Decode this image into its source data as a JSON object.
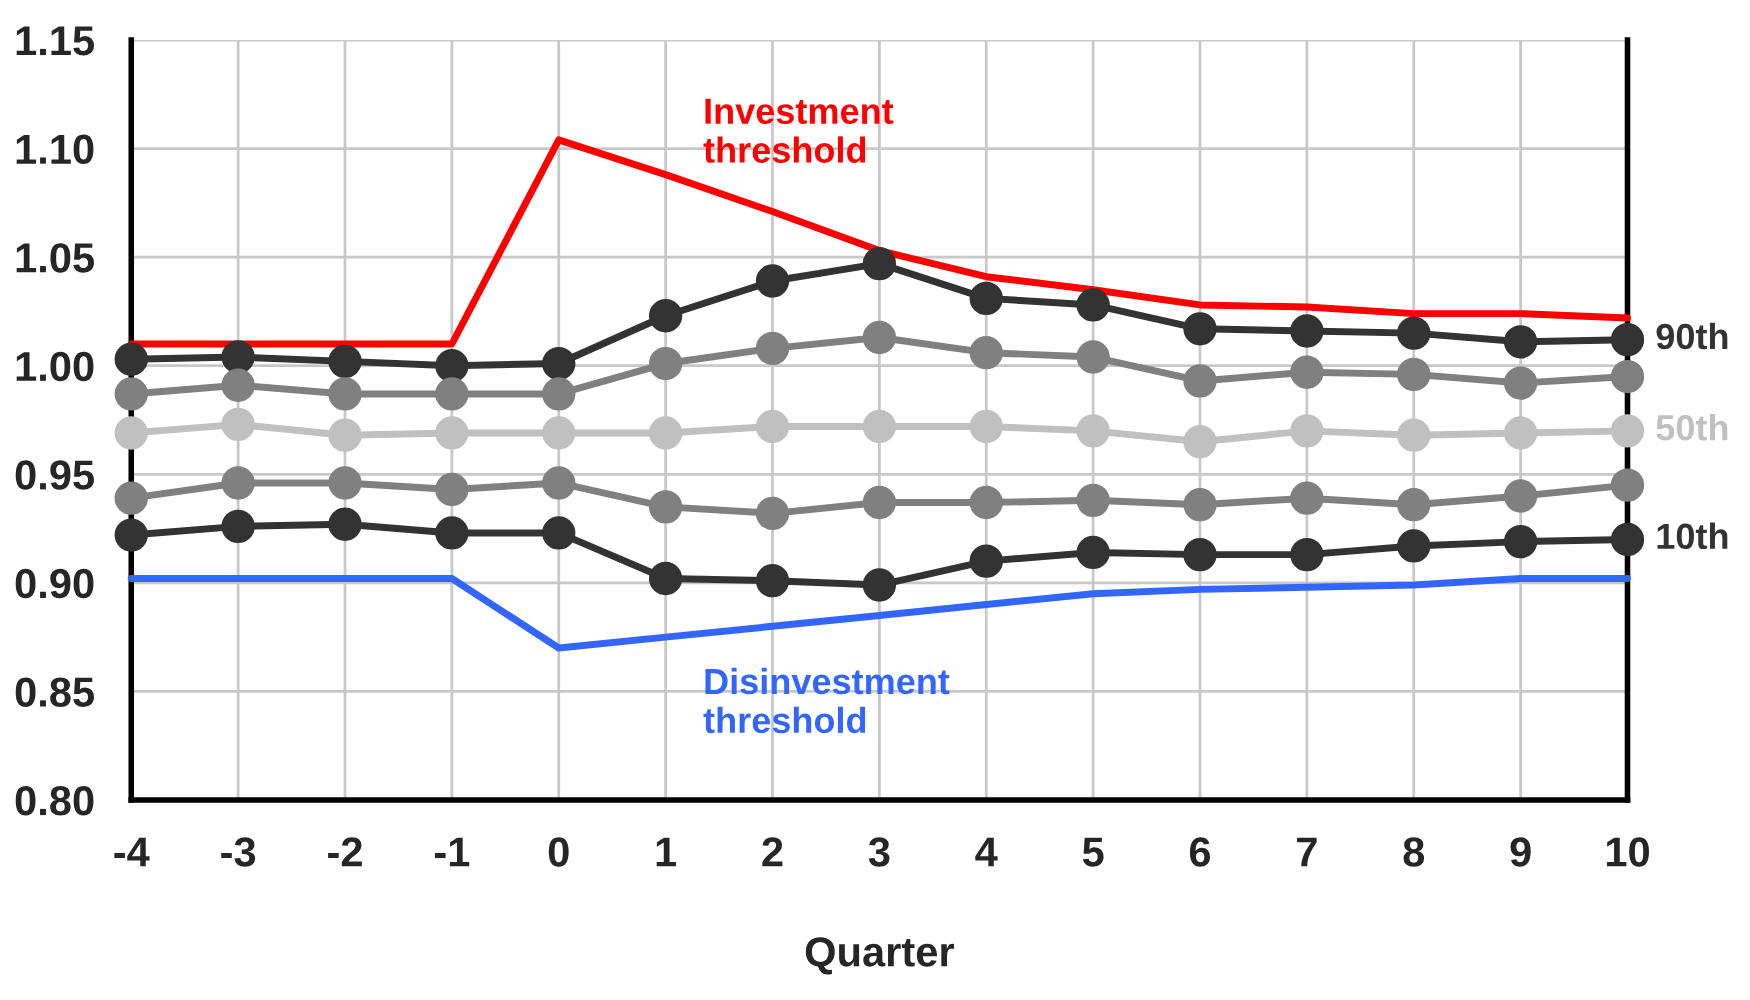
{
  "chart_data": {
    "type": "line",
    "xlabel": "Quarter",
    "x": [
      -4,
      -3,
      -2,
      -1,
      0,
      1,
      2,
      3,
      4,
      5,
      6,
      7,
      8,
      9,
      10
    ],
    "xlim": [
      -4,
      10
    ],
    "xticks": [
      -4,
      -3,
      -2,
      -1,
      0,
      1,
      2,
      3,
      4,
      5,
      6,
      7,
      8,
      9,
      10
    ],
    "ylim": [
      0.8,
      1.15
    ],
    "yticks": [
      {
        "value": 0.8,
        "label": "0.80"
      },
      {
        "value": 0.85,
        "label": "0.85"
      },
      {
        "value": 0.9,
        "label": "0.90"
      },
      {
        "value": 0.95,
        "label": "0.95"
      },
      {
        "value": 1.0,
        "label": "1.00"
      },
      {
        "value": 1.05,
        "label": "1.05"
      },
      {
        "value": 1.1,
        "label": "1.10"
      },
      {
        "value": 1.15,
        "label": "1.15"
      }
    ],
    "grid": true,
    "legend": false,
    "line_style": "solid",
    "series": [
      {
        "name": "Investment\nthreshold",
        "color": "#ff0000",
        "marker": "none",
        "values": [
          1.01,
          1.01,
          1.01,
          1.01,
          1.104,
          1.088,
          1.071,
          1.053,
          1.041,
          1.035,
          1.028,
          1.027,
          1.024,
          1.024,
          1.022
        ]
      },
      {
        "name": "90th",
        "color": "#333333",
        "marker": "circle",
        "values": [
          1.003,
          1.004,
          1.002,
          1.0,
          1.001,
          1.023,
          1.039,
          1.047,
          1.031,
          1.028,
          1.017,
          1.016,
          1.015,
          1.011,
          1.012
        ]
      },
      {
        "color": "#808080",
        "marker": "circle",
        "values": [
          0.987,
          0.991,
          0.987,
          0.987,
          0.987,
          1.001,
          1.008,
          1.013,
          1.006,
          1.004,
          0.993,
          0.997,
          0.996,
          0.992,
          0.995
        ]
      },
      {
        "name": "50th",
        "color": "#c0c0c0",
        "marker": "circle",
        "values": [
          0.969,
          0.973,
          0.968,
          0.969,
          0.969,
          0.969,
          0.972,
          0.972,
          0.972,
          0.97,
          0.965,
          0.97,
          0.968,
          0.969,
          0.97
        ]
      },
      {
        "color": "#808080",
        "marker": "circle",
        "values": [
          0.939,
          0.946,
          0.946,
          0.943,
          0.946,
          0.935,
          0.932,
          0.937,
          0.937,
          0.938,
          0.936,
          0.939,
          0.936,
          0.94,
          0.945
        ]
      },
      {
        "name": "10th",
        "color": "#333333",
        "marker": "circle",
        "values": [
          0.922,
          0.926,
          0.927,
          0.923,
          0.923,
          0.902,
          0.901,
          0.899,
          0.91,
          0.914,
          0.913,
          0.913,
          0.917,
          0.919,
          0.92
        ]
      },
      {
        "name": "Disinvestment\nthreshold",
        "color": "#3366ff",
        "marker": "none",
        "values": [
          0.902,
          0.902,
          0.902,
          0.902,
          0.87,
          0.875,
          0.88,
          0.885,
          0.89,
          0.895,
          0.897,
          0.898,
          0.899,
          0.902,
          0.902
        ]
      }
    ]
  }
}
